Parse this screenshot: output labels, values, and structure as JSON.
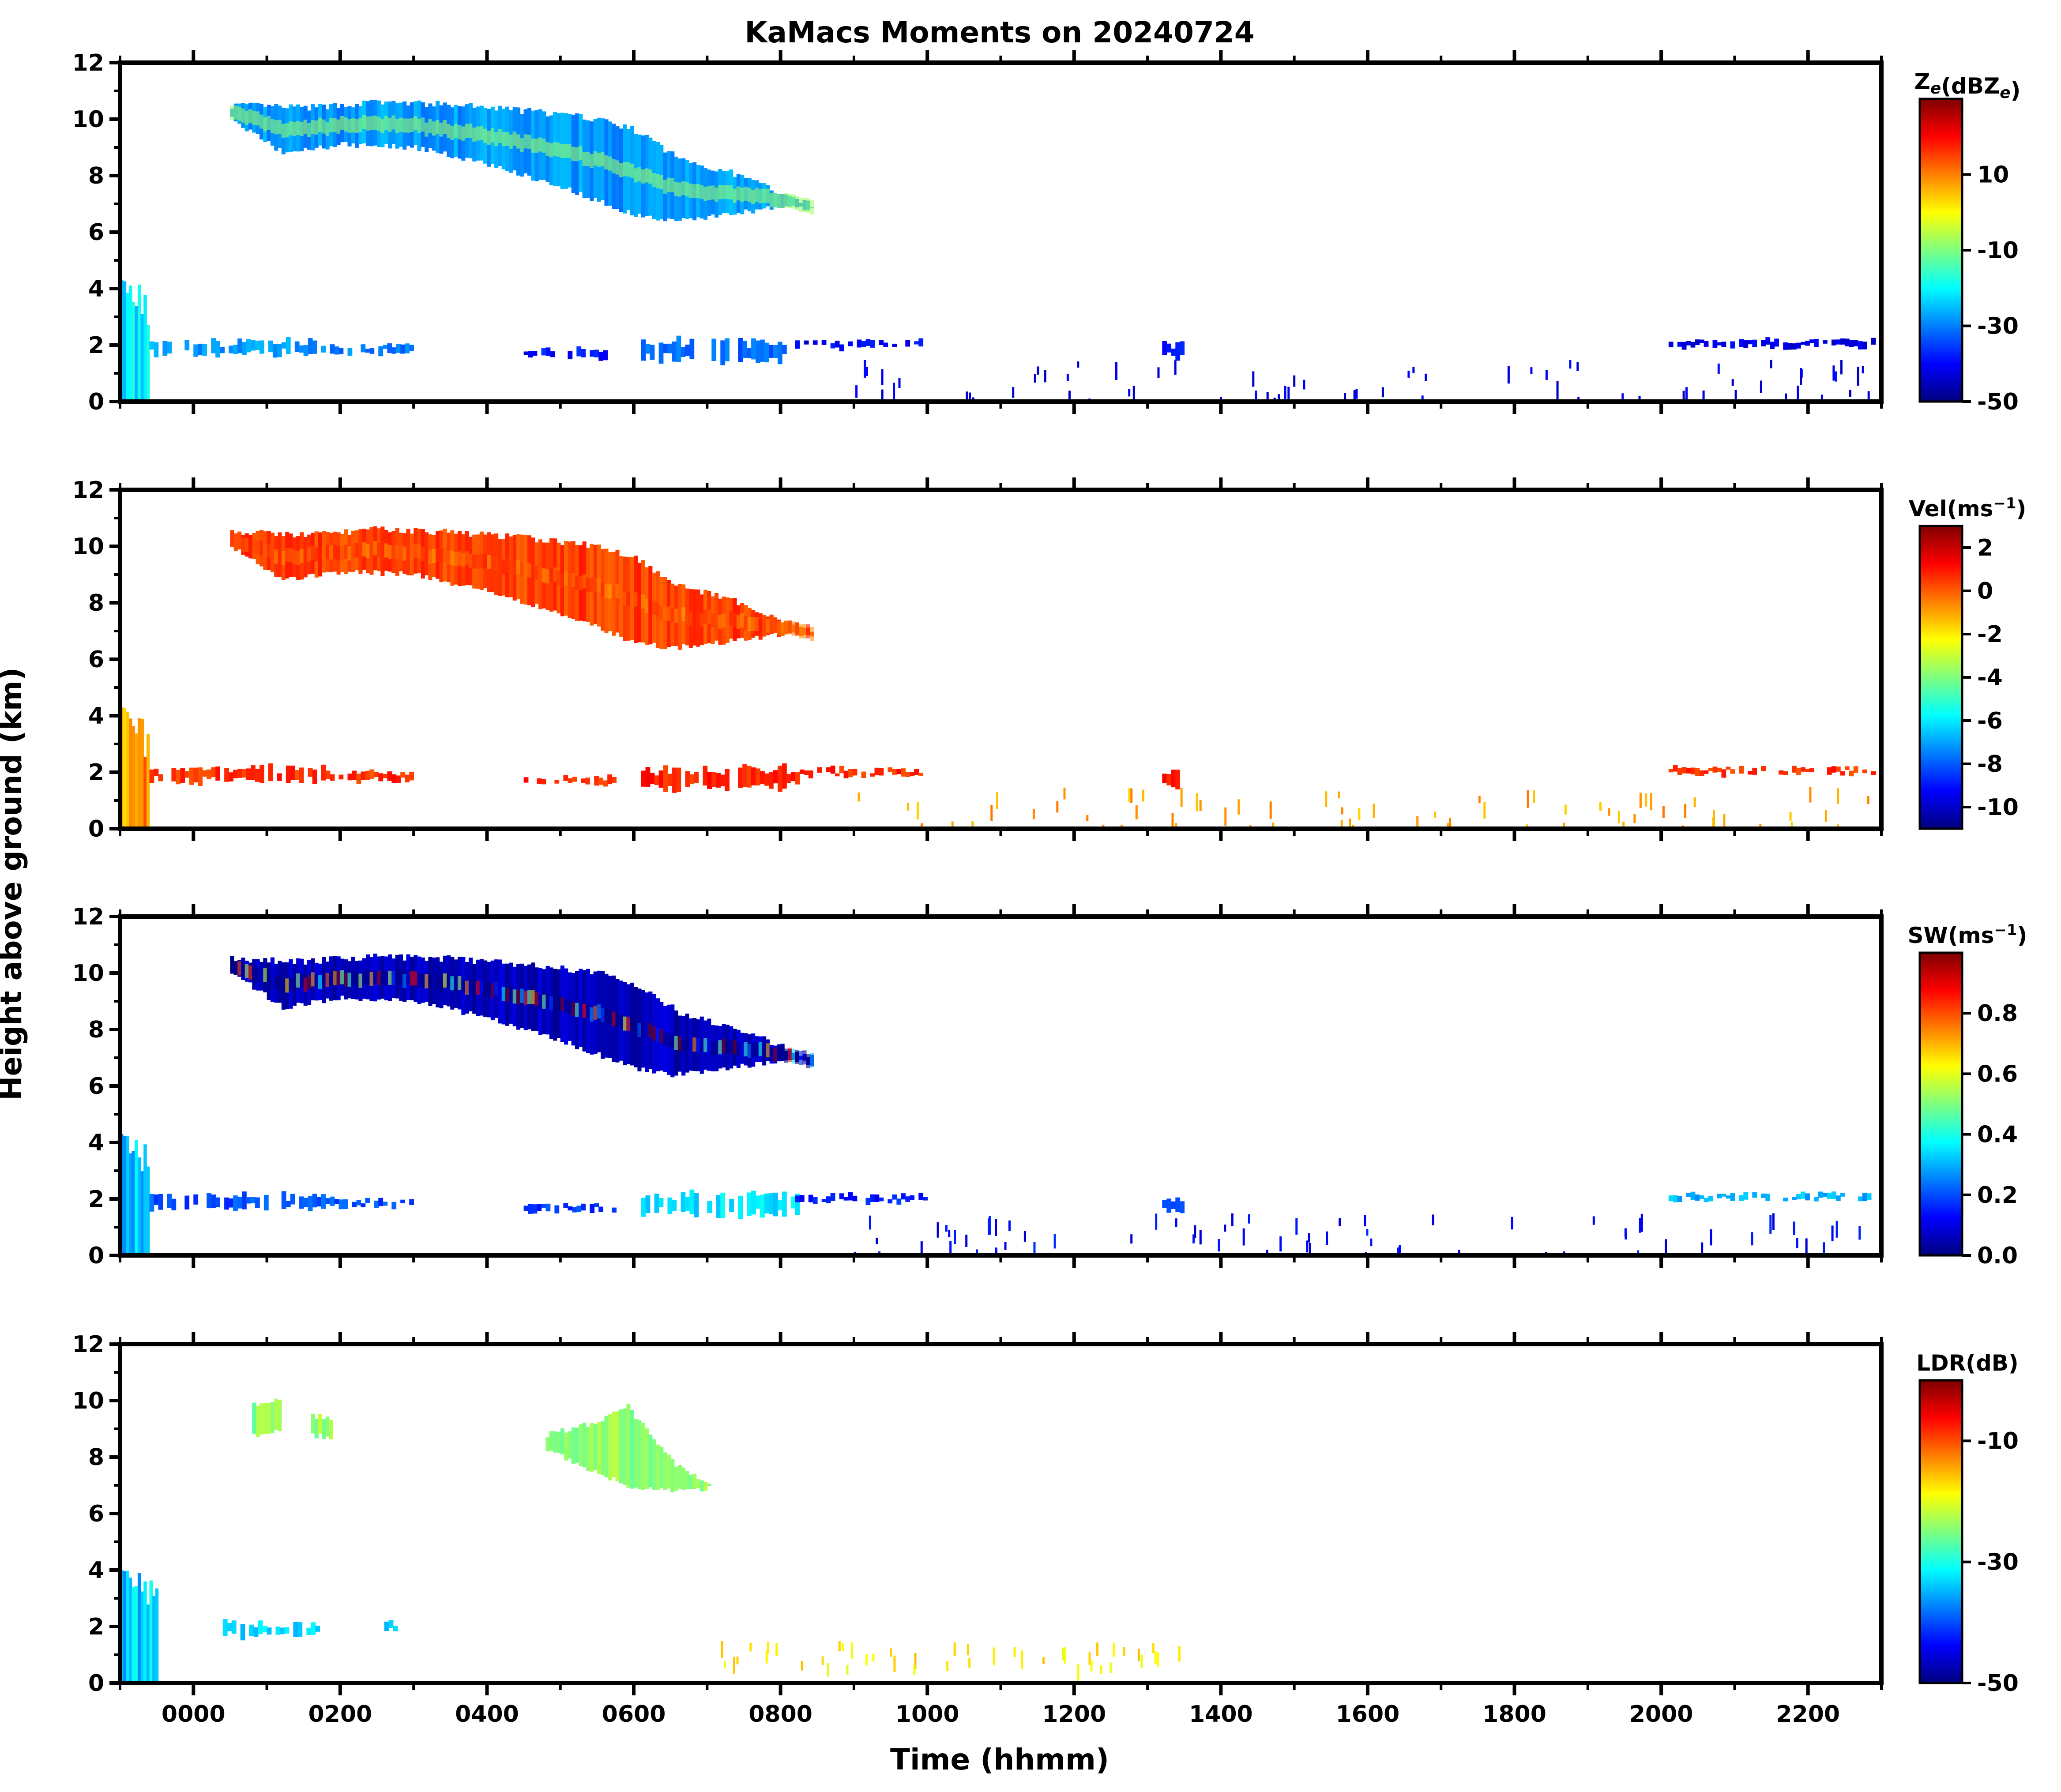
{
  "figure": {
    "title": "KaMacs Moments on 20240724",
    "xlabel": "Time (hhmm)",
    "ylabel": "Height above ground (km)"
  },
  "chart_data": {
    "type": "heatmap",
    "title": "KaMacs Moments on 20240724",
    "xlabel": "Time (hhmm)",
    "ylabel": "Height above ground (km)",
    "x_unit": "hours",
    "xlim": [
      -1.0,
      23.0
    ],
    "ylim": [
      0,
      12
    ],
    "x_ticks": [
      0,
      2,
      4,
      6,
      8,
      10,
      12,
      14,
      16,
      18,
      20,
      22
    ],
    "x_tick_labels": [
      "0000",
      "0200",
      "0400",
      "0600",
      "0800",
      "1000",
      "1200",
      "1400",
      "1600",
      "1800",
      "2000",
      "2200"
    ],
    "y_ticks": [
      0,
      2,
      4,
      6,
      8,
      10,
      12
    ],
    "y_tick_labels": [
      "0",
      "2",
      "4",
      "6",
      "8",
      "10",
      "12"
    ],
    "colormap": "jet",
    "colormap_colors": [
      "#00007f",
      "#0000ff",
      "#007fff",
      "#00ffff",
      "#7fff7f",
      "#ffff00",
      "#ff7f00",
      "#ff0000",
      "#7f0000"
    ],
    "panels": [
      {
        "name": "reflectivity",
        "colorbar_label": "Ze(dBZe)",
        "colorbar_label_main": "Z",
        "colorbar_label_sub1": "e",
        "colorbar_label_mid": "(dBZ",
        "colorbar_label_sub2": "e",
        "colorbar_label_end": ")",
        "vmin": -50,
        "vmax": 30,
        "colorbar_ticks": [
          10,
          -10,
          -30,
          -50
        ],
        "colorbar_tick_labels": [
          "10",
          "-10",
          "-30",
          "-50"
        ],
        "features": [
          {
            "kind": "cirrus",
            "t0": 0.5,
            "t1": 8.4,
            "top": [
              [
                0.5,
                10.5
              ],
              [
                1.5,
                10.4
              ],
              [
                2.5,
                10.6
              ],
              [
                3.5,
                10.5
              ],
              [
                4.5,
                10.3
              ],
              [
                5.5,
                10.0
              ],
              [
                6.0,
                9.6
              ],
              [
                6.6,
                8.6
              ],
              [
                7.3,
                8.1
              ],
              [
                8.0,
                7.4
              ],
              [
                8.4,
                7.0
              ]
            ],
            "base": [
              [
                0.5,
                10.0
              ],
              [
                1.2,
                8.8
              ],
              [
                2.0,
                9.1
              ],
              [
                3.0,
                9.0
              ],
              [
                4.0,
                8.4
              ],
              [
                5.0,
                7.6
              ],
              [
                6.0,
                6.6
              ],
              [
                6.5,
                6.4
              ],
              [
                7.2,
                6.6
              ],
              [
                8.0,
                6.9
              ],
              [
                8.4,
                6.8
              ]
            ],
            "value": -28,
            "core_value": -8
          },
          {
            "kind": "lowcloud",
            "t0": -1.0,
            "t1": -0.6,
            "top": 4.3,
            "base": 0.0,
            "value": -20
          },
          {
            "kind": "layer",
            "t0": -0.6,
            "t1": 1.8,
            "height": 1.9,
            "thickness": 0.55,
            "value": -28
          },
          {
            "kind": "layer",
            "t0": 1.8,
            "t1": 3.0,
            "height": 1.85,
            "thickness": 0.3,
            "value": -30
          },
          {
            "kind": "layer",
            "t0": 4.5,
            "t1": 5.7,
            "height": 1.7,
            "thickness": 0.3,
            "value": -38
          },
          {
            "kind": "layer",
            "t0": 6.1,
            "t1": 8.2,
            "height": 1.8,
            "thickness": 0.8,
            "value": -32
          },
          {
            "kind": "layer",
            "t0": 8.2,
            "t1": 10.0,
            "height": 2.0,
            "thickness": 0.25,
            "value": -40
          },
          {
            "kind": "layer",
            "t0": 13.2,
            "t1": 13.5,
            "height": 1.8,
            "thickness": 0.6,
            "value": -38
          },
          {
            "kind": "layer",
            "t0": 20.1,
            "t1": 22.9,
            "height": 2.05,
            "thickness": 0.25,
            "value": -42
          },
          {
            "kind": "speckle",
            "t0": 9.0,
            "t1": 22.9,
            "hmin": 0.1,
            "hmax": 1.5,
            "count": 70,
            "value": -42
          }
        ]
      },
      {
        "name": "velocity",
        "colorbar_label": "Vel(ms-1)",
        "colorbar_label_main": "Vel(ms",
        "colorbar_label_sup": "−1",
        "colorbar_label_end": ")",
        "vmin": -11,
        "vmax": 3,
        "colorbar_ticks": [
          2,
          0,
          -2,
          -4,
          -6,
          -8,
          -10
        ],
        "colorbar_tick_labels": [
          "2",
          "0",
          "-2",
          "-4",
          "-6",
          "-8",
          "-10"
        ],
        "features": [
          {
            "kind": "cirrus",
            "t0": 0.5,
            "t1": 8.4,
            "value": 0.4,
            "core_value": 0.0
          },
          {
            "kind": "lowcloud",
            "t0": -1.0,
            "t1": -0.6,
            "top": 4.3,
            "base": 0.0,
            "value": -0.8
          },
          {
            "kind": "layer",
            "t0": -0.6,
            "t1": 1.8,
            "height": 1.9,
            "thickness": 0.55,
            "value": 0.6
          },
          {
            "kind": "layer",
            "t0": 1.8,
            "t1": 3.0,
            "height": 1.85,
            "thickness": 0.3,
            "value": 0.6
          },
          {
            "kind": "layer",
            "t0": 4.5,
            "t1": 5.7,
            "height": 1.7,
            "thickness": 0.3,
            "value": 0.7
          },
          {
            "kind": "layer",
            "t0": 6.1,
            "t1": 8.2,
            "height": 1.8,
            "thickness": 0.8,
            "value": 0.8
          },
          {
            "kind": "layer",
            "t0": 8.2,
            "t1": 10.0,
            "height": 2.0,
            "thickness": 0.25,
            "value": 0.7
          },
          {
            "kind": "layer",
            "t0": 13.2,
            "t1": 13.5,
            "height": 1.8,
            "thickness": 0.6,
            "value": 0.8
          },
          {
            "kind": "layer",
            "t0": 20.1,
            "t1": 22.9,
            "height": 2.05,
            "thickness": 0.25,
            "value": 0.6
          },
          {
            "kind": "speckle",
            "t0": 9.0,
            "t1": 22.9,
            "hmin": 0.1,
            "hmax": 1.5,
            "count": 70,
            "value": -1.0
          }
        ]
      },
      {
        "name": "spectrum_width",
        "colorbar_label": "SW(ms-1)",
        "colorbar_label_main": "SW(ms",
        "colorbar_label_sup": "−1",
        "colorbar_label_end": ")",
        "vmin": 0.0,
        "vmax": 1.0,
        "colorbar_ticks": [
          0.8,
          0.6,
          0.4,
          0.2,
          0.0
        ],
        "colorbar_tick_labels": [
          "0.8",
          "0.6",
          "0.4",
          "0.2",
          "0.0"
        ],
        "features": [
          {
            "kind": "cirrus",
            "t0": 0.5,
            "t1": 8.4,
            "value": 0.06,
            "core_value": 0.12
          },
          {
            "kind": "lowcloud",
            "t0": -1.0,
            "t1": -0.6,
            "top": 4.3,
            "base": 0.0,
            "value": 0.3
          },
          {
            "kind": "layer",
            "t0": -0.6,
            "t1": 1.8,
            "height": 1.9,
            "thickness": 0.55,
            "value": 0.2
          },
          {
            "kind": "layer",
            "t0": 1.8,
            "t1": 3.0,
            "height": 1.85,
            "thickness": 0.3,
            "value": 0.2
          },
          {
            "kind": "layer",
            "t0": 4.5,
            "t1": 5.7,
            "height": 1.7,
            "thickness": 0.3,
            "value": 0.18
          },
          {
            "kind": "layer",
            "t0": 6.1,
            "t1": 8.2,
            "height": 1.8,
            "thickness": 0.8,
            "value": 0.35
          },
          {
            "kind": "layer",
            "t0": 8.2,
            "t1": 10.0,
            "height": 2.0,
            "thickness": 0.25,
            "value": 0.15
          },
          {
            "kind": "layer",
            "t0": 13.2,
            "t1": 13.5,
            "height": 1.8,
            "thickness": 0.6,
            "value": 0.2
          },
          {
            "kind": "layer",
            "t0": 20.1,
            "t1": 22.9,
            "height": 2.05,
            "thickness": 0.25,
            "value": 0.3
          },
          {
            "kind": "speckle",
            "t0": 9.0,
            "t1": 22.9,
            "hmin": 0.1,
            "hmax": 1.5,
            "count": 70,
            "value": 0.12
          }
        ]
      },
      {
        "name": "linear_depolarization_ratio",
        "colorbar_label": "LDR(dB)",
        "vmin": -50,
        "vmax": 0,
        "colorbar_ticks": [
          -10,
          -30,
          -50
        ],
        "colorbar_tick_labels": [
          "-10",
          "-30",
          "-50"
        ],
        "features": [
          {
            "kind": "patch",
            "t0": 0.8,
            "t1": 1.2,
            "hmin": 9.0,
            "hmax": 10.1,
            "value": -24
          },
          {
            "kind": "patch",
            "t0": 1.6,
            "t1": 1.9,
            "hmin": 8.9,
            "hmax": 9.6,
            "value": -24
          },
          {
            "kind": "plume",
            "t0": 4.8,
            "t1": 7.0,
            "top": [
              [
                4.8,
                8.8
              ],
              [
                5.4,
                9.2
              ],
              [
                5.9,
                9.8
              ],
              [
                6.2,
                8.8
              ],
              [
                6.6,
                7.6
              ],
              [
                7.0,
                7.0
              ]
            ],
            "base": [
              [
                4.8,
                8.3
              ],
              [
                5.4,
                7.5
              ],
              [
                6.0,
                6.9
              ],
              [
                6.6,
                6.8
              ],
              [
                7.0,
                6.9
              ]
            ],
            "value": -24
          },
          {
            "kind": "lowcloud",
            "t0": -1.0,
            "t1": -0.5,
            "top": 4.0,
            "base": 0.0,
            "value": -34
          },
          {
            "kind": "layer",
            "t0": 0.4,
            "t1": 1.7,
            "height": 1.9,
            "thickness": 0.5,
            "value": -33
          },
          {
            "kind": "layer",
            "t0": 2.6,
            "t1": 2.8,
            "height": 2.0,
            "thickness": 0.3,
            "value": -33
          },
          {
            "kind": "speckle",
            "t0": 7.0,
            "t1": 13.5,
            "hmin": 0.6,
            "hmax": 1.5,
            "count": 45,
            "value": -18
          }
        ]
      }
    ]
  }
}
